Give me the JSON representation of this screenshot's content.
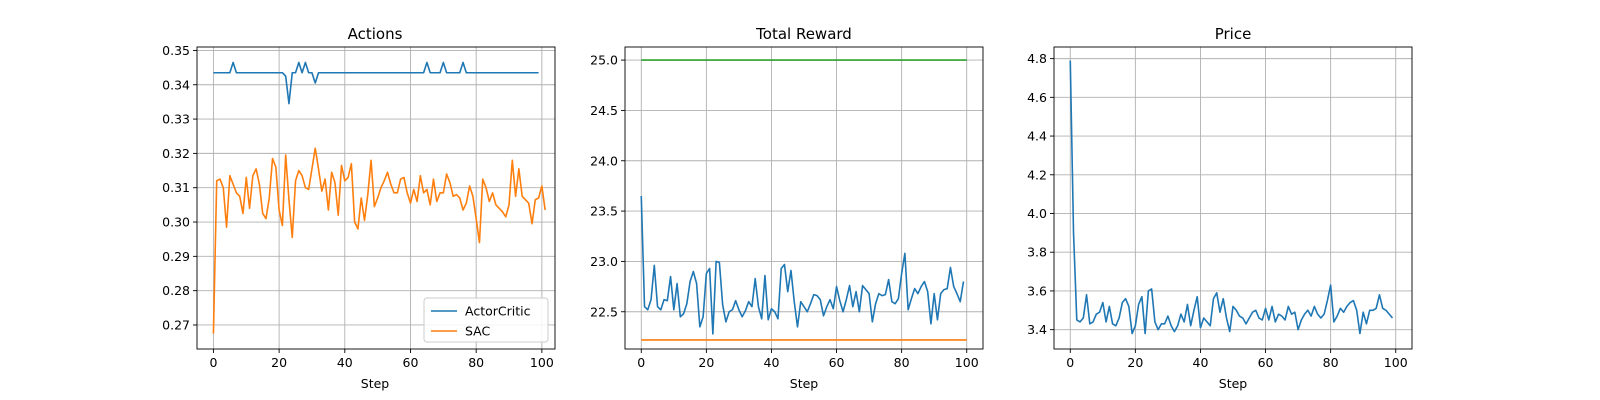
{
  "figure": {
    "background": "#ffffff",
    "grid_color": "#b0b0b0"
  },
  "chart_data": [
    {
      "type": "line",
      "title": "Actions",
      "xlabel": "Step",
      "ylabel": "",
      "xlim": [
        -5,
        104
      ],
      "ylim": [
        0.263,
        0.351
      ],
      "xticks": [
        0,
        20,
        40,
        60,
        80,
        100
      ],
      "yticks": [
        0.27,
        0.28,
        0.29,
        0.3,
        0.31,
        0.32,
        0.33,
        0.34,
        0.35
      ],
      "ytick_labels": [
        "0.27",
        "0.28",
        "0.29",
        "0.30",
        "0.31",
        "0.32",
        "0.33",
        "0.34",
        "0.35"
      ],
      "grid": true,
      "legend": {
        "placement": "lower-right",
        "entries": [
          "ActorCritic",
          "SAC"
        ]
      },
      "series": [
        {
          "name": "ActorCritic",
          "color": "#1f77b4",
          "x_start": 0,
          "values": [
            0.3435,
            0.3435,
            0.3435,
            0.3435,
            0.3435,
            0.3435,
            0.3465,
            0.3435,
            0.3435,
            0.3435,
            0.3435,
            0.3435,
            0.3435,
            0.3435,
            0.3435,
            0.3435,
            0.3435,
            0.3435,
            0.3435,
            0.3435,
            0.3435,
            0.3435,
            0.3425,
            0.3345,
            0.3435,
            0.3435,
            0.3465,
            0.3435,
            0.3465,
            0.3435,
            0.3435,
            0.3405,
            0.3435,
            0.3435,
            0.3435,
            0.3435,
            0.3435,
            0.3435,
            0.3435,
            0.3435,
            0.3435,
            0.3435,
            0.3435,
            0.3435,
            0.3435,
            0.3435,
            0.3435,
            0.3435,
            0.3435,
            0.3435,
            0.3435,
            0.3435,
            0.3435,
            0.3435,
            0.3435,
            0.3435,
            0.3435,
            0.3435,
            0.3435,
            0.3435,
            0.3435,
            0.3435,
            0.3435,
            0.3435,
            0.3435,
            0.3465,
            0.3435,
            0.3435,
            0.3435,
            0.3435,
            0.3465,
            0.3435,
            0.3435,
            0.3435,
            0.3435,
            0.3435,
            0.3465,
            0.3435,
            0.3435,
            0.3435,
            0.3435,
            0.3435,
            0.3435,
            0.3435,
            0.3435,
            0.3435,
            0.3435,
            0.3435,
            0.3435,
            0.3435,
            0.3435,
            0.3435,
            0.3435,
            0.3435,
            0.3435,
            0.3435,
            0.3435,
            0.3435,
            0.3435,
            0.3435
          ]
        },
        {
          "name": "SAC",
          "color": "#ff7f0e",
          "x_start": 0,
          "values": [
            0.2675,
            0.312,
            0.3125,
            0.31,
            0.2985,
            0.3135,
            0.311,
            0.3085,
            0.3075,
            0.3025,
            0.313,
            0.304,
            0.3135,
            0.3155,
            0.311,
            0.3025,
            0.301,
            0.307,
            0.3185,
            0.316,
            0.3035,
            0.299,
            0.3195,
            0.3065,
            0.2955,
            0.312,
            0.315,
            0.3135,
            0.31,
            0.3095,
            0.3155,
            0.3215,
            0.3155,
            0.309,
            0.3125,
            0.3035,
            0.3145,
            0.3115,
            0.302,
            0.3165,
            0.312,
            0.313,
            0.317,
            0.3,
            0.298,
            0.307,
            0.3005,
            0.308,
            0.318,
            0.3045,
            0.307,
            0.31,
            0.312,
            0.3145,
            0.311,
            0.3085,
            0.3085,
            0.3125,
            0.313,
            0.3085,
            0.3055,
            0.3095,
            0.306,
            0.3135,
            0.3085,
            0.3095,
            0.305,
            0.3125,
            0.306,
            0.3085,
            0.3085,
            0.314,
            0.3115,
            0.3075,
            0.308,
            0.307,
            0.3035,
            0.3055,
            0.3105,
            0.3075,
            0.301,
            0.294,
            0.3125,
            0.31,
            0.306,
            0.3085,
            0.305,
            0.304,
            0.303,
            0.3015,
            0.305,
            0.318,
            0.3075,
            0.3155,
            0.3075,
            0.3065,
            0.3055,
            0.2995,
            0.3065,
            0.307,
            0.3105,
            0.3035
          ]
        }
      ]
    },
    {
      "type": "line",
      "title": "Total Reward",
      "xlabel": "Step",
      "ylabel": "",
      "xlim": [
        -5,
        105
      ],
      "ylim": [
        22.13,
        25.13
      ],
      "xticks": [
        0,
        20,
        40,
        60,
        80,
        100
      ],
      "yticks": [
        22.5,
        23.0,
        23.5,
        24.0,
        24.5,
        25.0
      ],
      "ytick_labels": [
        "22.5",
        "23.0",
        "23.5",
        "24.0",
        "24.5",
        "25.0"
      ],
      "grid": true,
      "series": [
        {
          "color": "#2ca02c",
          "x_start": 0,
          "values": [
            25.0,
            25.0
          ]
        },
        {
          "color": "#ff7f0e",
          "x_start": 0,
          "values": [
            22.22,
            22.22
          ]
        },
        {
          "color": "#1f77b4",
          "x_start": 0,
          "values": [
            23.65,
            22.55,
            22.52,
            22.62,
            22.96,
            22.55,
            22.52,
            22.62,
            22.61,
            22.85,
            22.52,
            22.78,
            22.45,
            22.48,
            22.58,
            22.8,
            22.9,
            22.78,
            22.35,
            22.45,
            22.88,
            22.93,
            22.28,
            23.0,
            22.99,
            22.57,
            22.4,
            22.5,
            22.52,
            22.61,
            22.52,
            22.45,
            22.51,
            22.6,
            22.55,
            22.83,
            22.55,
            22.43,
            22.86,
            22.42,
            22.53,
            22.5,
            22.43,
            22.93,
            22.97,
            22.7,
            22.91,
            22.6,
            22.35,
            22.6,
            22.55,
            22.5,
            22.58,
            22.67,
            22.66,
            22.62,
            22.46,
            22.55,
            22.62,
            22.53,
            22.75,
            22.61,
            22.5,
            22.62,
            22.76,
            22.55,
            22.7,
            22.5,
            22.76,
            22.72,
            22.68,
            22.4,
            22.58,
            22.68,
            22.66,
            22.67,
            22.82,
            22.6,
            22.58,
            22.63,
            22.88,
            23.08,
            22.52,
            22.63,
            22.73,
            22.68,
            22.75,
            22.8,
            22.7,
            22.38,
            22.68,
            22.42,
            22.68,
            22.72,
            22.73,
            22.94,
            22.75,
            22.68,
            22.6,
            22.8
          ]
        }
      ]
    },
    {
      "type": "line",
      "title": "Price",
      "xlabel": "Step",
      "ylabel": "",
      "xlim": [
        -5,
        105
      ],
      "ylim": [
        3.3,
        4.86
      ],
      "xticks": [
        0,
        20,
        40,
        60,
        80,
        100
      ],
      "yticks": [
        3.4,
        3.6,
        3.8,
        4.0,
        4.2,
        4.4,
        4.6,
        4.8
      ],
      "ytick_labels": [
        "3.4",
        "3.6",
        "3.8",
        "4.0",
        "4.2",
        "4.4",
        "4.6",
        "4.8"
      ],
      "grid": true,
      "series": [
        {
          "color": "#1f77b4",
          "x_start": 0,
          "values": [
            4.79,
            3.9,
            3.45,
            3.44,
            3.46,
            3.58,
            3.43,
            3.44,
            3.48,
            3.49,
            3.54,
            3.44,
            3.52,
            3.43,
            3.42,
            3.46,
            3.54,
            3.56,
            3.52,
            3.38,
            3.42,
            3.53,
            3.57,
            3.38,
            3.6,
            3.61,
            3.44,
            3.4,
            3.43,
            3.43,
            3.47,
            3.42,
            3.39,
            3.42,
            3.48,
            3.44,
            3.53,
            3.42,
            3.5,
            3.57,
            3.41,
            3.46,
            3.44,
            3.42,
            3.56,
            3.59,
            3.49,
            3.56,
            3.46,
            3.39,
            3.52,
            3.5,
            3.47,
            3.46,
            3.43,
            3.46,
            3.49,
            3.5,
            3.46,
            3.45,
            3.51,
            3.45,
            3.52,
            3.44,
            3.48,
            3.47,
            3.45,
            3.52,
            3.48,
            3.49,
            3.4,
            3.45,
            3.48,
            3.5,
            3.47,
            3.52,
            3.48,
            3.46,
            3.48,
            3.55,
            3.63,
            3.44,
            3.47,
            3.51,
            3.49,
            3.52,
            3.54,
            3.55,
            3.5,
            3.38,
            3.49,
            3.43,
            3.5,
            3.5,
            3.51,
            3.58,
            3.51,
            3.5,
            3.48,
            3.46
          ]
        }
      ]
    }
  ]
}
